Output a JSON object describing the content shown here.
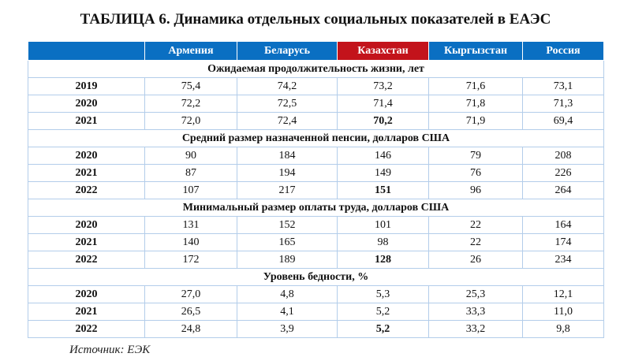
{
  "title": "ТАБЛИЦА 6. Динамика отдельных социальных показателей в ЕАЭС",
  "columns": [
    "",
    "Армения",
    "Беларусь",
    "Казахстан",
    "Кыргызстан",
    "Россия"
  ],
  "colors": {
    "header": "#0a6fc2",
    "highlight": "#c3131b",
    "border": "#b3cdea"
  },
  "sections": [
    {
      "title": "Ожидаемая продолжительность жизни, лет",
      "rows": [
        [
          "2019",
          "75,4",
          "74,2",
          "73,2",
          "71,6",
          "73,1"
        ],
        [
          "2020",
          "72,2",
          "72,5",
          "71,4",
          "71,8",
          "71,3"
        ],
        [
          "2021",
          "72,0",
          "72,4",
          "70,2",
          "71,9",
          "69,4"
        ]
      ],
      "bold_row": 2
    },
    {
      "title": "Средний размер назначенной пенсии, долларов США",
      "rows": [
        [
          "2020",
          "90",
          "184",
          "146",
          "79",
          "208"
        ],
        [
          "2021",
          "87",
          "194",
          "149",
          "76",
          "226"
        ],
        [
          "2022",
          "107",
          "217",
          "151",
          "96",
          "264"
        ]
      ],
      "bold_row": 2
    },
    {
      "title": "Минимальный размер оплаты труда, долларов США",
      "rows": [
        [
          "2020",
          "131",
          "152",
          "101",
          "22",
          "164"
        ],
        [
          "2021",
          "140",
          "165",
          "98",
          "22",
          "174"
        ],
        [
          "2022",
          "172",
          "189",
          "128",
          "26",
          "234"
        ]
      ],
      "bold_row": 2
    },
    {
      "title": "Уровень бедности, %",
      "rows": [
        [
          "2020",
          "27,0",
          "4,8",
          "5,3",
          "25,3",
          "12,1"
        ],
        [
          "2021",
          "26,5",
          "4,1",
          "5,2",
          "33,3",
          "11,0"
        ],
        [
          "2022",
          "24,8",
          "3,9",
          "5,2",
          "33,2",
          "9,8"
        ]
      ],
      "bold_row": 2
    }
  ],
  "source": "Источник: ЕЭК"
}
